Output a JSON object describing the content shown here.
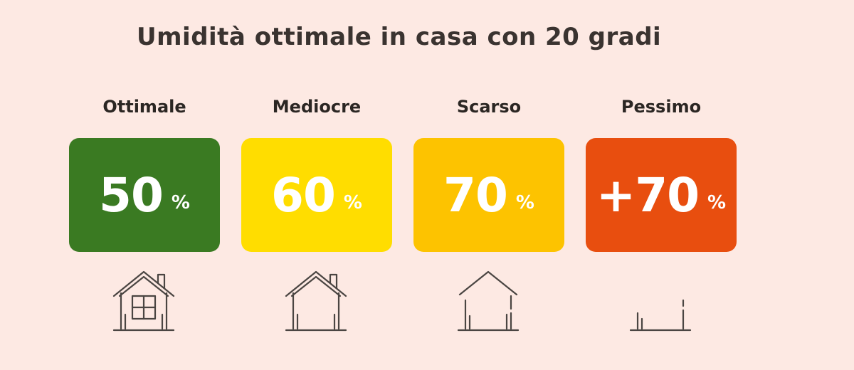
{
  "title": "Umidità ottimale in casa con 20 gradi",
  "levels": [
    {
      "label": "Ottimale",
      "value": "50",
      "unit": "%",
      "color": "#3a7a22",
      "icon": "full-house-icon"
    },
    {
      "label": "Mediocre",
      "value": "60",
      "unit": "%",
      "color": "#ffdd00",
      "icon": "house-no-window-icon"
    },
    {
      "label": "Scarso",
      "value": "70",
      "unit": "%",
      "color": "#fdc300",
      "icon": "house-broken-walls-icon"
    },
    {
      "label": "Pessimo",
      "value": "+70",
      "unit": "%",
      "color": "#e84e0f",
      "icon": "ruined-house-icon"
    }
  ]
}
